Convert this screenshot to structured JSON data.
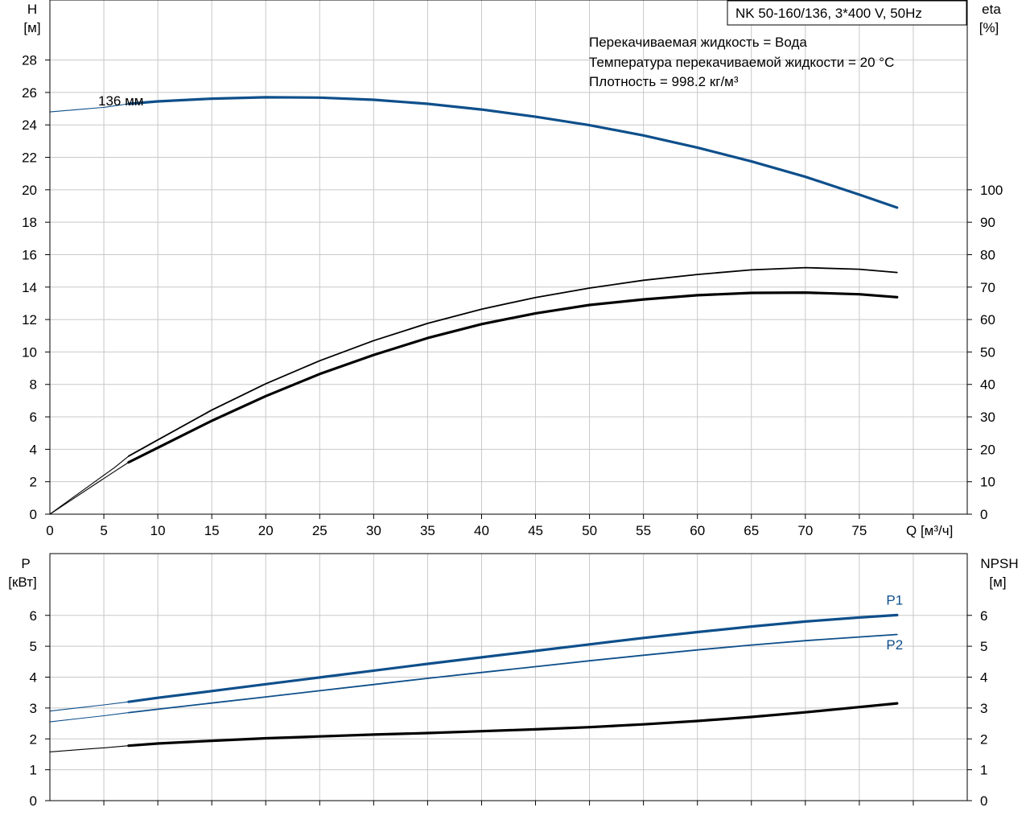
{
  "colors": {
    "blue": "#0e4f8b",
    "black": "#000000",
    "grid": "#c8c8c8",
    "frame": "#000000"
  },
  "chart_data": [
    {
      "type": "line",
      "id": "head-efficiency",
      "x_label": "Q [м³/ч]",
      "x_ticks": [
        0,
        5,
        10,
        15,
        20,
        25,
        30,
        35,
        40,
        45,
        50,
        55,
        60,
        65,
        70,
        75
      ],
      "xlim": [
        0,
        85
      ],
      "grid": true,
      "left_axis": {
        "label_top": "H",
        "label_unit": "[м]",
        "ylim": [
          0,
          31.7
        ],
        "ticks": [
          0,
          2,
          4,
          6,
          8,
          10,
          12,
          14,
          16,
          18,
          20,
          22,
          24,
          26,
          28
        ]
      },
      "right_axis": {
        "label_top": "eta",
        "label_unit": "[%]",
        "ylim": [
          0,
          158.5
        ],
        "ticks": [
          0,
          10,
          20,
          30,
          40,
          50,
          60,
          70,
          80,
          90,
          100
        ]
      },
      "title_box": "NK 50-160/136, 3*400 V, 50Hz",
      "annotations": [
        "Перекачиваемая жидкость = Вода",
        "Температура перекачиваемой жидкости = 20 °C",
        "Плотность = 998.2 кг/м³"
      ],
      "curve_label": "136 мм",
      "series": [
        {
          "axis": "left",
          "color": "blue",
          "width": 3.2,
          "x": [
            7.3,
            10,
            15,
            20,
            25,
            30,
            35,
            40,
            45,
            50,
            55,
            60,
            65,
            70,
            75,
            78.5
          ],
          "y": [
            25.3,
            25.45,
            25.62,
            25.7,
            25.68,
            25.55,
            25.3,
            24.95,
            24.5,
            23.98,
            23.35,
            22.6,
            21.75,
            20.8,
            19.7,
            18.9
          ]
        },
        {
          "axis": "left",
          "color": "blue",
          "width": 1.1,
          "x": [
            0,
            3,
            5,
            7.3
          ],
          "y": [
            24.8,
            24.97,
            25.08,
            25.3
          ]
        },
        {
          "axis": "right",
          "color": "black",
          "width": 1.8,
          "x": [
            7.3,
            10,
            15,
            20,
            25,
            30,
            35,
            40,
            45,
            50,
            55,
            60,
            65,
            70,
            75,
            78.5
          ],
          "y": [
            17.9,
            22.9,
            32.1,
            40.2,
            47.3,
            53.5,
            58.8,
            63.2,
            66.8,
            69.7,
            72.1,
            73.9,
            75.3,
            76.0,
            75.5,
            74.5
          ]
        },
        {
          "axis": "right",
          "color": "black",
          "width": 1.1,
          "x": [
            0,
            2,
            4,
            6,
            7.3
          ],
          "y": [
            0,
            4.8,
            9.6,
            14.4,
            17.9
          ]
        },
        {
          "axis": "right",
          "color": "black",
          "width": 3.2,
          "x": [
            7.3,
            10,
            15,
            20,
            25,
            30,
            35,
            40,
            45,
            50,
            55,
            60,
            65,
            70,
            75,
            78.5
          ],
          "y": [
            16.0,
            20.5,
            28.8,
            36.4,
            43.2,
            49.1,
            54.3,
            58.6,
            61.9,
            64.5,
            66.2,
            67.5,
            68.2,
            68.3,
            67.8,
            66.9
          ]
        },
        {
          "axis": "right",
          "color": "black",
          "width": 1.1,
          "x": [
            0,
            2,
            4,
            6,
            7.3
          ],
          "y": [
            0,
            4.4,
            8.8,
            13.2,
            16.0
          ]
        }
      ]
    },
    {
      "type": "line",
      "id": "power-npsh",
      "xlim": [
        0,
        85
      ],
      "grid": true,
      "left_axis": {
        "label_top": "P",
        "label_unit": "[кВт]",
        "ylim": [
          0,
          8
        ],
        "ticks": [
          0,
          1,
          2,
          3,
          4,
          5,
          6
        ]
      },
      "right_axis": {
        "label_top": "NPSH",
        "label_unit": "[м]",
        "ylim": [
          0,
          8
        ],
        "ticks": [
          0,
          1,
          2,
          3,
          4,
          5,
          6
        ]
      },
      "series_labels": [
        {
          "text": "P1",
          "x": 77.5,
          "y": 6.35,
          "color": "blue"
        },
        {
          "text": "P2",
          "x": 77.5,
          "y": 5.0,
          "color": "blue"
        }
      ],
      "series": [
        {
          "name": "P1",
          "axis": "left",
          "color": "blue",
          "width": 3.2,
          "x": [
            7.3,
            10,
            15,
            20,
            25,
            30,
            35,
            40,
            45,
            50,
            55,
            60,
            65,
            70,
            75,
            78.5
          ],
          "y": [
            3.2,
            3.33,
            3.55,
            3.77,
            3.99,
            4.21,
            4.43,
            4.64,
            4.85,
            5.06,
            5.27,
            5.46,
            5.64,
            5.8,
            5.93,
            6.01
          ]
        },
        {
          "axis": "left",
          "color": "blue",
          "width": 1.1,
          "x": [
            0,
            3,
            5,
            7.3
          ],
          "y": [
            2.9,
            3.02,
            3.1,
            3.2
          ]
        },
        {
          "name": "P2",
          "axis": "left",
          "color": "blue",
          "width": 1.8,
          "x": [
            7.3,
            10,
            15,
            20,
            25,
            30,
            35,
            40,
            45,
            50,
            55,
            60,
            65,
            70,
            75,
            78.5
          ],
          "y": [
            2.85,
            2.96,
            3.16,
            3.36,
            3.56,
            3.76,
            3.96,
            4.15,
            4.34,
            4.53,
            4.71,
            4.88,
            5.04,
            5.18,
            5.3,
            5.38
          ]
        },
        {
          "axis": "left",
          "color": "blue",
          "width": 1.1,
          "x": [
            0,
            3,
            5,
            7.3
          ],
          "y": [
            2.55,
            2.67,
            2.75,
            2.85
          ]
        },
        {
          "name": "NPSH",
          "axis": "right",
          "color": "black",
          "width": 3.2,
          "x": [
            7.3,
            10,
            15,
            20,
            25,
            30,
            35,
            40,
            45,
            50,
            55,
            60,
            65,
            70,
            75,
            78.5
          ],
          "y": [
            1.78,
            1.85,
            1.94,
            2.02,
            2.08,
            2.14,
            2.19,
            2.25,
            2.31,
            2.38,
            2.47,
            2.58,
            2.71,
            2.86,
            3.03,
            3.15
          ]
        },
        {
          "axis": "right",
          "color": "black",
          "width": 1.1,
          "x": [
            0,
            3,
            5,
            7.3
          ],
          "y": [
            1.58,
            1.66,
            1.71,
            1.78
          ]
        }
      ]
    }
  ]
}
